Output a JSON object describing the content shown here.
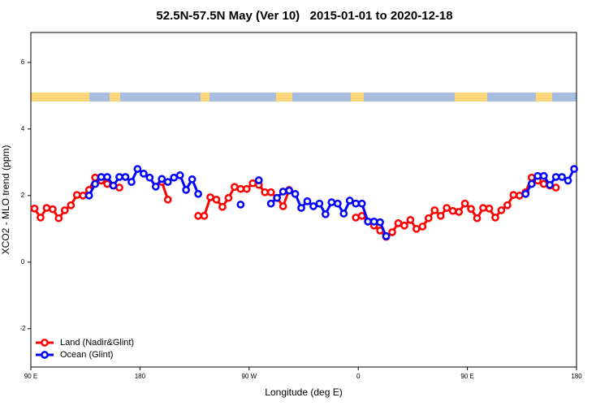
{
  "chart_data": {
    "type": "line",
    "title": "52.5N-57.5N May (Ver 10)   2015-01-01 to 2020-12-18",
    "x_label": "Longitude (deg E)",
    "y_label": "XCO2 - MLO trend (ppm)",
    "xlim": [
      90,
      540
    ],
    "ylim": [
      -3.15,
      6.9
    ],
    "xticks": [
      {
        "value": 90,
        "label": "90 E"
      },
      180,
      {
        "value": 270,
        "label": "90 W"
      },
      {
        "value": 360,
        "label": "0"
      },
      {
        "value": 450,
        "label": "90 E"
      },
      {
        "value": 540,
        "label": "180"
      }
    ],
    "yticks": [
      -2,
      0,
      2,
      4,
      6
    ],
    "grid": false,
    "legend": "lower left",
    "x": [
      93,
      98,
      103,
      108,
      113,
      118,
      123,
      128,
      133,
      138,
      143,
      148,
      153,
      158,
      163,
      168,
      173,
      178,
      183,
      188,
      193,
      198,
      203,
      208,
      213,
      218,
      223,
      228,
      233,
      238,
      243,
      248,
      253,
      258,
      263,
      268,
      273,
      278,
      283,
      288,
      293,
      298,
      303,
      308,
      313,
      318,
      323,
      328,
      333,
      338,
      343,
      348,
      353,
      358,
      363,
      368,
      373,
      378,
      383,
      388,
      393,
      398,
      403,
      408,
      413,
      418,
      423,
      428,
      433,
      438,
      443,
      448,
      453,
      458,
      463,
      468,
      473,
      478,
      483,
      488,
      493,
      498,
      503,
      508,
      513,
      518,
      523,
      528,
      533,
      538
    ],
    "series": [
      {
        "name": "Land (Nadir&Glint)",
        "color": "#ff0000",
        "values": [
          1.61,
          1.34,
          1.63,
          1.59,
          1.32,
          1.56,
          1.71,
          2.02,
          2.0,
          2.17,
          2.54,
          2.45,
          2.35,
          2.3,
          2.24,
          null,
          null,
          null,
          null,
          null,
          null,
          2.41,
          1.88,
          null,
          null,
          null,
          null,
          1.39,
          1.39,
          1.95,
          1.88,
          1.66,
          1.93,
          2.26,
          2.2,
          2.2,
          2.37,
          2.32,
          2.1,
          2.1,
          1.93,
          1.68,
          2.17,
          null,
          null,
          null,
          null,
          null,
          null,
          null,
          null,
          null,
          null,
          1.34,
          1.39,
          1.22,
          1.1,
          0.95,
          0.76,
          0.9,
          1.17,
          1.1,
          1.27,
          1.0,
          1.07,
          1.32,
          1.56,
          1.39,
          1.63,
          1.54,
          1.51,
          1.76,
          1.6,
          1.32,
          1.63,
          1.61,
          1.34,
          1.56,
          1.71,
          2.02,
          2.0,
          2.1,
          2.54,
          2.45,
          2.35,
          2.3,
          2.24,
          null,
          null,
          null
        ]
      },
      {
        "name": "Ocean (Glint)",
        "color": "#0000ff",
        "values": [
          null,
          null,
          null,
          null,
          null,
          null,
          null,
          null,
          null,
          2.0,
          2.35,
          2.56,
          2.56,
          2.3,
          2.56,
          2.56,
          2.41,
          2.8,
          2.66,
          2.54,
          2.27,
          2.5,
          2.41,
          2.54,
          2.61,
          2.17,
          2.49,
          2.05,
          null,
          null,
          null,
          null,
          null,
          null,
          1.73,
          null,
          null,
          2.46,
          null,
          1.76,
          1.93,
          2.12,
          2.15,
          2.05,
          1.63,
          1.83,
          1.68,
          1.76,
          1.44,
          1.8,
          1.76,
          1.46,
          1.85,
          1.76,
          1.76,
          1.22,
          1.22,
          1.2,
          0.78,
          null,
          null,
          null,
          null,
          null,
          null,
          null,
          null,
          null,
          null,
          null,
          null,
          null,
          null,
          null,
          null,
          null,
          null,
          null,
          null,
          null,
          null,
          2.05,
          2.35,
          2.59,
          2.59,
          2.32,
          2.56,
          2.56,
          2.45,
          2.8
        ]
      }
    ]
  }
}
